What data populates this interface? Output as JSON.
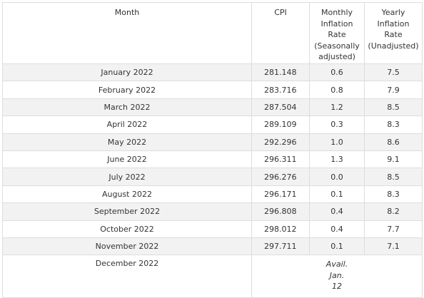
{
  "table": {
    "headers": {
      "month": "Month",
      "cpi": "CPI",
      "monthly": [
        "Monthly",
        "Inflation",
        "Rate",
        "(Seasonally",
        "adjusted)"
      ],
      "yearly": [
        "Yearly",
        "Inflation",
        "Rate",
        "(Unadjusted)"
      ]
    },
    "rows": [
      {
        "month": "January 2022",
        "cpi": "281.148",
        "monthly": "0.6",
        "yearly": "7.5"
      },
      {
        "month": "February 2022",
        "cpi": "283.716",
        "monthly": "0.8",
        "yearly": "7.9"
      },
      {
        "month": "March 2022",
        "cpi": "287.504",
        "monthly": "1.2",
        "yearly": "8.5"
      },
      {
        "month": "April 2022",
        "cpi": "289.109",
        "monthly": "0.3",
        "yearly": "8.3"
      },
      {
        "month": "May 2022",
        "cpi": "292.296",
        "monthly": "1.0",
        "yearly": "8.6"
      },
      {
        "month": "June 2022",
        "cpi": "296.311",
        "monthly": "1.3",
        "yearly": "9.1"
      },
      {
        "month": "July 2022",
        "cpi": "296.276",
        "monthly": "0.0",
        "yearly": "8.5"
      },
      {
        "month": "August 2022",
        "cpi": "296.171",
        "monthly": "0.1",
        "yearly": "8.3"
      },
      {
        "month": "September 2022",
        "cpi": "296.808",
        "monthly": "0.4",
        "yearly": "8.2"
      },
      {
        "month": "October 2022",
        "cpi": "298.012",
        "monthly": "0.4",
        "yearly": "7.7"
      },
      {
        "month": "November 2022",
        "cpi": "297.711",
        "monthly": "0.1",
        "yearly": "7.1"
      }
    ],
    "last_row": {
      "month": "December 2022",
      "avail": [
        "Avail.",
        "Jan.",
        "12"
      ]
    }
  },
  "colors": {
    "stripe": "#f2f2f2",
    "border": "#dddddd",
    "text": "#333333"
  }
}
